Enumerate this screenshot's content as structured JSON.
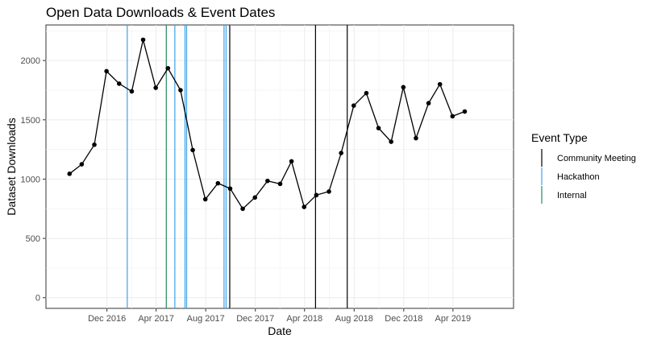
{
  "chart_data": {
    "type": "line",
    "title": "Open Data Downloads & Event Dates",
    "xlabel": "Date",
    "ylabel": "Dataset Downloads",
    "x_ticks": [
      "Dec 2016",
      "Apr 2017",
      "Aug 2017",
      "Dec 2017",
      "Apr 2018",
      "Aug 2018",
      "Dec 2018",
      "Apr 2019"
    ],
    "y_ticks": [
      0,
      500,
      1000,
      1500,
      2000
    ],
    "ylim": [
      -90,
      2300
    ],
    "xlim": [
      "2016-07-04",
      "2019-08-28"
    ],
    "grid": true,
    "series": [
      {
        "color": "#000000",
        "points": [
          {
            "x": "2016-08-31",
            "y": 1045
          },
          {
            "x": "2016-09-30",
            "y": 1125
          },
          {
            "x": "2016-10-31",
            "y": 1290
          },
          {
            "x": "2016-11-30",
            "y": 1910
          },
          {
            "x": "2016-12-31",
            "y": 1805
          },
          {
            "x": "2017-01-31",
            "y": 1740
          },
          {
            "x": "2017-02-28",
            "y": 2175
          },
          {
            "x": "2017-03-31",
            "y": 1770
          },
          {
            "x": "2017-04-30",
            "y": 1935
          },
          {
            "x": "2017-05-31",
            "y": 1750
          },
          {
            "x": "2017-06-30",
            "y": 1245
          },
          {
            "x": "2017-07-31",
            "y": 830
          },
          {
            "x": "2017-08-31",
            "y": 965
          },
          {
            "x": "2017-09-30",
            "y": 920
          },
          {
            "x": "2017-10-31",
            "y": 750
          },
          {
            "x": "2017-11-30",
            "y": 845
          },
          {
            "x": "2017-12-31",
            "y": 985
          },
          {
            "x": "2018-01-31",
            "y": 960
          },
          {
            "x": "2018-02-28",
            "y": 1150
          },
          {
            "x": "2018-03-31",
            "y": 765
          },
          {
            "x": "2018-04-30",
            "y": 865
          },
          {
            "x": "2018-05-31",
            "y": 895
          },
          {
            "x": "2018-06-30",
            "y": 1220
          },
          {
            "x": "2018-07-31",
            "y": 1620
          },
          {
            "x": "2018-08-31",
            "y": 1725
          },
          {
            "x": "2018-09-30",
            "y": 1430
          },
          {
            "x": "2018-10-31",
            "y": 1315
          },
          {
            "x": "2018-11-30",
            "y": 1775
          },
          {
            "x": "2018-12-31",
            "y": 1345
          },
          {
            "x": "2019-01-31",
            "y": 1640
          },
          {
            "x": "2019-02-28",
            "y": 1800
          },
          {
            "x": "2019-03-31",
            "y": 1530
          },
          {
            "x": "2019-04-30",
            "y": 1570
          }
        ]
      }
    ],
    "events": [
      {
        "date": "2017-01-20",
        "type": "Hackathon"
      },
      {
        "date": "2017-04-26",
        "type": "Internal"
      },
      {
        "date": "2017-05-17",
        "type": "Hackathon"
      },
      {
        "date": "2017-06-11",
        "type": "Hackathon"
      },
      {
        "date": "2017-06-15",
        "type": "Hackathon"
      },
      {
        "date": "2017-09-15",
        "type": "Hackathon"
      },
      {
        "date": "2017-09-20",
        "type": "Hackathon"
      },
      {
        "date": "2017-09-29",
        "type": "Community Meeting"
      },
      {
        "date": "2018-04-28",
        "type": "Community Meeting"
      },
      {
        "date": "2018-07-15",
        "type": "Community Meeting"
      }
    ],
    "legend": {
      "title": "Event Type",
      "position": "right",
      "entries": [
        {
          "label": "Community Meeting",
          "color": "#000000"
        },
        {
          "label": "Hackathon",
          "color": "#3ba3e8"
        },
        {
          "label": "Internal",
          "color": "#1f8a5f"
        }
      ]
    }
  }
}
